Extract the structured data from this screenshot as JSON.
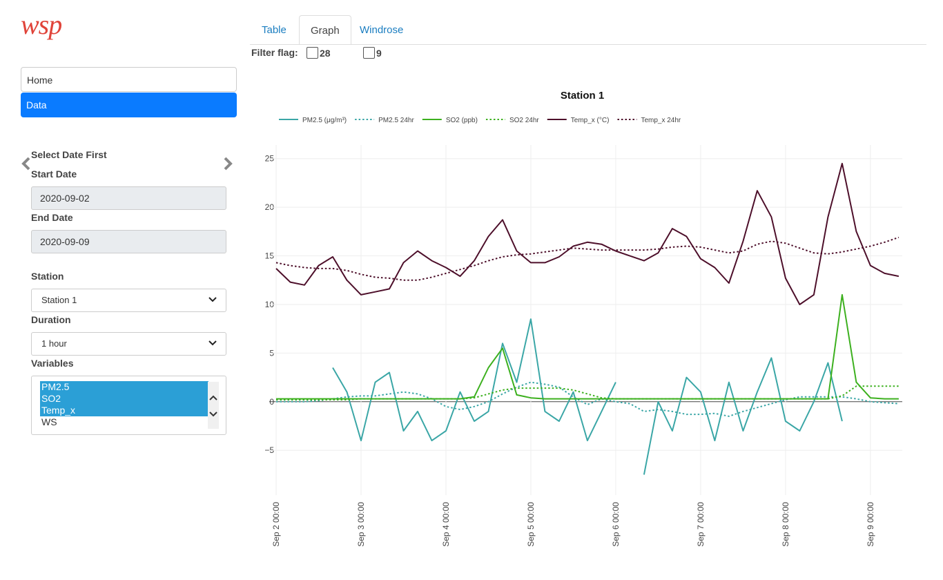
{
  "logo": "wsp",
  "tabs": [
    "Table",
    "Graph",
    "Windrose"
  ],
  "filter": {
    "label": "Filter flag:",
    "options": [
      "28",
      "9"
    ]
  },
  "nav": [
    "Home",
    "Data"
  ],
  "form": {
    "heading": "Select Date First",
    "start_label": "Start Date",
    "start_value": "2020-09-02",
    "end_label": "End Date",
    "end_value": "2020-09-09",
    "station_label": "Station",
    "station_value": "Station 1",
    "duration_label": "Duration",
    "duration_value": "1 hour",
    "variables_label": "Variables",
    "variables": [
      "PM2.5",
      "SO2",
      "Temp_x",
      "WS"
    ],
    "selected": [
      true,
      true,
      true,
      false
    ]
  },
  "chart_data": {
    "type": "line",
    "title": "Station 1",
    "x": [
      "Sep 2 00:00",
      "Sep 2 04:00",
      "Sep 2 08:00",
      "Sep 2 12:00",
      "Sep 2 16:00",
      "Sep 2 20:00",
      "Sep 3 00:00",
      "Sep 3 04:00",
      "Sep 3 08:00",
      "Sep 3 12:00",
      "Sep 3 16:00",
      "Sep 3 20:00",
      "Sep 4 00:00",
      "Sep 4 04:00",
      "Sep 4 08:00",
      "Sep 4 12:00",
      "Sep 4 16:00",
      "Sep 4 20:00",
      "Sep 5 00:00",
      "Sep 5 04:00",
      "Sep 5 08:00",
      "Sep 5 12:00",
      "Sep 5 16:00",
      "Sep 5 20:00",
      "Sep 6 00:00",
      "Sep 6 04:00",
      "Sep 6 08:00",
      "Sep 6 12:00",
      "Sep 6 16:00",
      "Sep 6 20:00",
      "Sep 7 00:00",
      "Sep 7 04:00",
      "Sep 7 08:00",
      "Sep 7 12:00",
      "Sep 7 16:00",
      "Sep 7 20:00",
      "Sep 8 00:00",
      "Sep 8 04:00",
      "Sep 8 08:00",
      "Sep 8 12:00",
      "Sep 8 16:00",
      "Sep 8 20:00",
      "Sep 9 00:00",
      "Sep 9 04:00",
      "Sep 9 08:00"
    ],
    "xlim": [
      "Sep 2 00:00",
      "Sep 9 09:00"
    ],
    "xticks": [
      "Sep 2 00:00",
      "Sep 3 00:00",
      "Sep 4 00:00",
      "Sep 5 00:00",
      "Sep 6 00:00",
      "Sep 7 00:00",
      "Sep 8 00:00",
      "Sep 9 00:00"
    ],
    "ylim": [
      -9.6,
      26.4
    ],
    "yticks": [
      {
        "value": -5,
        "label": "−5"
      },
      0,
      5,
      10,
      15,
      20,
      25
    ],
    "grid": true,
    "legend": "top",
    "series": [
      {
        "name": "PM2.5 (μg/m³)",
        "color": "#3aa6a6",
        "style": "solid",
        "values": [
          null,
          null,
          null,
          null,
          3.5,
          1,
          -4,
          2,
          3,
          -3,
          -1,
          -4,
          -3,
          1,
          -2,
          -1,
          6,
          2,
          8.5,
          -1,
          -2,
          1,
          -4,
          -1,
          2,
          null,
          -7.5,
          0,
          -3,
          2.5,
          1,
          -4,
          2,
          -3,
          1,
          4.5,
          -2,
          -3,
          0,
          4,
          -2,
          null,
          null,
          null,
          null
        ]
      },
      {
        "name": "PM2.5 24hr",
        "color": "#3aa6a6",
        "style": "dotted",
        "values": [
          0,
          0,
          0,
          0.1,
          0.3,
          0.5,
          0.6,
          0.6,
          0.8,
          1.0,
          0.8,
          0.3,
          -0.5,
          -0.8,
          -0.5,
          0,
          0.8,
          1.5,
          2.0,
          1.8,
          1.5,
          0.5,
          -0.3,
          0.3,
          0,
          -0.2,
          -1.0,
          -0.8,
          -1.0,
          -1.3,
          -1.3,
          -1.2,
          -1.5,
          -1.0,
          -0.6,
          -0.2,
          0.2,
          0.5,
          0.5,
          0.5,
          0.5,
          0.3,
          0,
          -0.1,
          -0.2
        ]
      },
      {
        "name": "SO2 (ppb)",
        "color": "#3cb01e",
        "style": "solid",
        "values": [
          0.3,
          0.3,
          0.3,
          0.3,
          0.3,
          0.3,
          0.3,
          0.3,
          0.3,
          0.3,
          0.3,
          0.3,
          0.3,
          0.3,
          0.5,
          3.5,
          5.5,
          0.7,
          0.4,
          0.3,
          0.3,
          0.3,
          0.3,
          0.3,
          0.3,
          0.3,
          0.3,
          0.3,
          0.3,
          0.3,
          0.3,
          0.3,
          0.3,
          0.3,
          0.3,
          0.3,
          0.3,
          0.3,
          0.3,
          0.3,
          11,
          2,
          0.4,
          0.3,
          0.3
        ]
      },
      {
        "name": "SO2 24hr",
        "color": "#3cb01e",
        "style": "dotted",
        "values": [
          0.2,
          0.2,
          0.2,
          0.2,
          0.2,
          0.2,
          0.3,
          0.3,
          0.3,
          0.3,
          0.3,
          0.3,
          0.3,
          0.3,
          0.4,
          0.8,
          1.2,
          1.4,
          1.4,
          1.4,
          1.4,
          1.2,
          0.8,
          0.4,
          0.3,
          0.3,
          0.3,
          0.3,
          0.3,
          0.3,
          0.3,
          0.3,
          0.3,
          0.3,
          0.3,
          0.3,
          0.3,
          0.3,
          0.3,
          0.3,
          0.6,
          1.6,
          1.6,
          1.6,
          1.6
        ]
      },
      {
        "name": "Temp_x (°C)",
        "color": "#4d0f2a",
        "style": "solid",
        "values": [
          13.7,
          12.3,
          12.0,
          14.0,
          14.9,
          12.5,
          11.0,
          11.3,
          11.6,
          14.3,
          15.5,
          14.5,
          13.8,
          12.9,
          14.5,
          17.0,
          18.7,
          15.5,
          14.3,
          14.3,
          14.9,
          16.0,
          16.4,
          16.2,
          15.5,
          15.0,
          14.5,
          15.3,
          17.8,
          17.0,
          14.7,
          13.8,
          12.2,
          16.5,
          21.7,
          19.0,
          12.7,
          10.0,
          11.0,
          19.0,
          24.5,
          17.5,
          14.0,
          13.2,
          12.9
        ]
      },
      {
        "name": "Temp_x 24hr",
        "color": "#4d0f2a",
        "style": "dotted",
        "values": [
          14.3,
          14.0,
          13.8,
          13.7,
          13.7,
          13.5,
          13.1,
          12.8,
          12.7,
          12.5,
          12.5,
          12.8,
          13.2,
          13.6,
          14.0,
          14.5,
          14.9,
          15.1,
          15.2,
          15.4,
          15.6,
          15.8,
          15.7,
          15.6,
          15.6,
          15.6,
          15.6,
          15.7,
          15.9,
          16.0,
          15.9,
          15.6,
          15.3,
          15.5,
          16.2,
          16.5,
          16.3,
          15.8,
          15.3,
          15.2,
          15.4,
          15.7,
          16.0,
          16.4,
          16.9
        ]
      }
    ]
  }
}
